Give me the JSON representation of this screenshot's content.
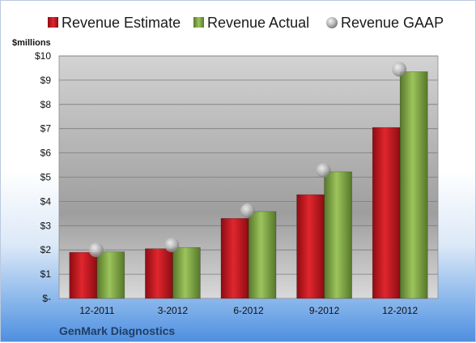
{
  "chart_data": {
    "type": "bar",
    "title": "",
    "ylabel": "$millions",
    "company": "GenMark Diagnostics",
    "categories": [
      "12-2011",
      "3-2012",
      "6-2012",
      "9-2012",
      "12-2012"
    ],
    "series": [
      {
        "name": "Revenue Estimate",
        "kind": "bar",
        "color": "#c0141c",
        "values": [
          1.9,
          2.05,
          3.3,
          4.28,
          7.05
        ]
      },
      {
        "name": "Revenue Actual",
        "kind": "bar",
        "color": "#7aa040",
        "values": [
          1.92,
          2.1,
          3.58,
          5.22,
          9.35
        ]
      },
      {
        "name": "Revenue GAAP",
        "kind": "marker",
        "color": "#a8a8a8",
        "values": [
          2.0,
          2.2,
          3.62,
          5.28,
          9.45
        ]
      }
    ],
    "ylim": [
      0,
      10
    ],
    "yticks": [
      "$-",
      "$1",
      "$2",
      "$3",
      "$4",
      "$5",
      "$6",
      "$7",
      "$8",
      "$9",
      "$10"
    ],
    "grid": true,
    "legend_position": "top"
  }
}
